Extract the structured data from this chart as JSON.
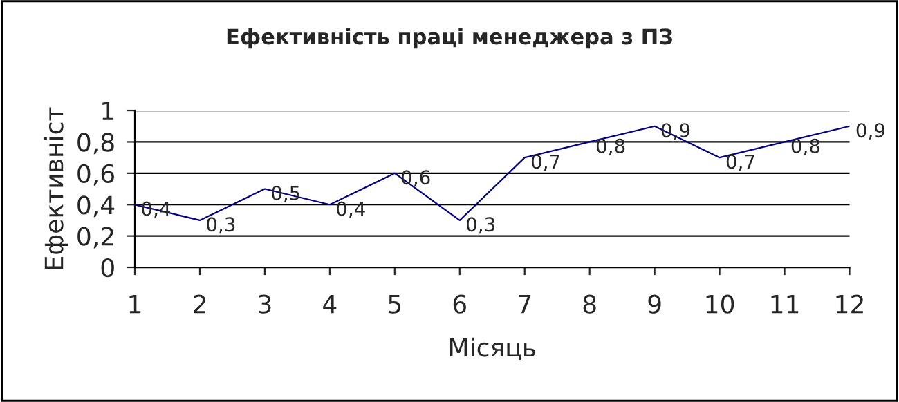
{
  "chart_data": {
    "type": "line",
    "title": "Ефективність праці менеджера з ПЗ",
    "xlabel": "Місяць",
    "ylabel": "Ефективніст",
    "x": [
      1,
      2,
      3,
      4,
      5,
      6,
      7,
      8,
      9,
      10,
      11,
      12
    ],
    "series": [
      {
        "color": "#000080",
        "values": [
          0.4,
          0.3,
          0.5,
          0.4,
          0.6,
          0.3,
          0.7,
          0.8,
          0.9,
          0.7,
          0.8,
          0.9
        ],
        "value_labels": [
          "0,4",
          "0,3",
          "0,5",
          "0,4",
          "0,6",
          "0,3",
          "0,7",
          "0,8",
          "0,9",
          "0,7",
          "0,8",
          "0,9"
        ]
      }
    ],
    "xlim": [
      1,
      12
    ],
    "xticks": [
      1,
      2,
      3,
      4,
      5,
      6,
      7,
      8,
      9,
      10,
      11,
      12
    ],
    "ylim": [
      0,
      1
    ],
    "yticks": [
      0,
      {
        "value": 0.2,
        "label": "0,2"
      },
      {
        "value": 0.4,
        "label": "0,4"
      },
      {
        "value": 0.6,
        "label": "0,6"
      },
      {
        "value": 0.8,
        "label": "0,8"
      },
      1
    ],
    "grid": "y",
    "marker": "none",
    "line_style": "solid"
  }
}
